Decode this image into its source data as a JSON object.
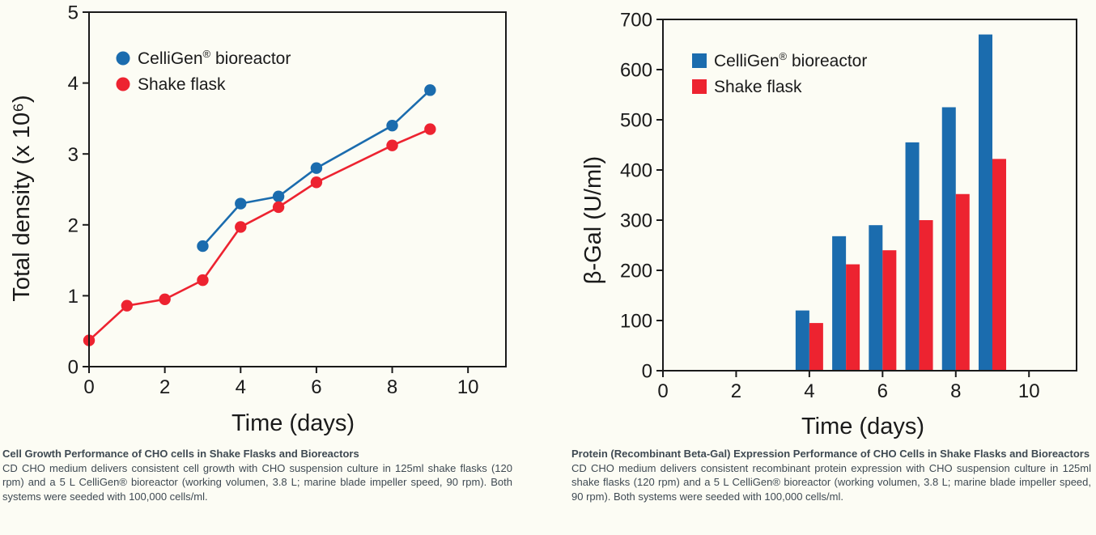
{
  "page": {
    "background": "#fcfcf4"
  },
  "colors": {
    "bioreactor_blue": "#1b6cae",
    "shake_flask_red": "#ed2330",
    "axis_black": "#1a1a1a",
    "caption_text": "#3e4952"
  },
  "chart_data": [
    {
      "id": "cell-growth",
      "type": "line",
      "title": "",
      "xlabel": "Time (days)",
      "ylabel": "Total density (x 10⁶)",
      "xlim": [
        0,
        11
      ],
      "ylim": [
        0,
        5
      ],
      "xticks": [
        0,
        2,
        4,
        6,
        8,
        10
      ],
      "yticks": [
        0,
        1,
        2,
        3,
        4,
        5
      ],
      "grid": false,
      "legend_position": "top-left-inside",
      "legend_marker": "circle",
      "series": [
        {
          "name": "CelliGen® bioreactor",
          "color": "#1b6cae",
          "marker": "circle",
          "points": [
            [
              3,
              1.7
            ],
            [
              4,
              2.3
            ],
            [
              5,
              2.4
            ],
            [
              6,
              2.8
            ],
            [
              8,
              3.4
            ],
            [
              9,
              3.9
            ]
          ]
        },
        {
          "name": "Shake flask",
          "color": "#ed2330",
          "marker": "circle",
          "points": [
            [
              0,
              0.37
            ],
            [
              1,
              0.86
            ],
            [
              2,
              0.95
            ],
            [
              3,
              1.22
            ],
            [
              4,
              1.97
            ],
            [
              5,
              2.25
            ],
            [
              6,
              2.6
            ],
            [
              8,
              3.12
            ],
            [
              9,
              3.35
            ]
          ]
        }
      ]
    },
    {
      "id": "beta-gal",
      "type": "bar",
      "title": "",
      "xlabel": "Time (days)",
      "ylabel": "β-Gal (U/ml)",
      "xlim": [
        0,
        11.3
      ],
      "ylim": [
        0,
        700
      ],
      "xticks": [
        0,
        2,
        4,
        6,
        8,
        10
      ],
      "yticks": [
        0,
        100,
        200,
        300,
        400,
        500,
        600,
        700
      ],
      "grid": false,
      "legend_position": "top-left-inside",
      "legend_marker": "square",
      "categories": [
        4,
        5,
        6,
        7,
        8,
        9
      ],
      "series": [
        {
          "name": "CelliGen® bioreactor",
          "color": "#1b6cae",
          "values": [
            120,
            268,
            290,
            455,
            525,
            670
          ]
        },
        {
          "name": "Shake flask",
          "color": "#ed2330",
          "values": [
            95,
            212,
            240,
            300,
            352,
            422
          ]
        }
      ]
    }
  ],
  "captions": {
    "left": {
      "title": "Cell Growth Performance of CHO cells in Shake Flasks and Bioreactors",
      "body": "CD CHO medium delivers consistent cell growth with CHO suspension culture in 125ml shake flasks (120 rpm) and a 5 L CelliGen® bioreactor (working volumen, 3.8 L; marine blade impeller speed, 90 rpm). Both systems were seeded with 100,000 cells/ml."
    },
    "right": {
      "title": "Protein (Recombinant Beta-Gal) Expression Performance of CHO Cells in Shake Flasks and Bioreactors",
      "body": "CD CHO medium delivers consistent recombinant protein expression with CHO suspension culture in 125ml shake flasks (120 rpm) and a 5 L CelliGen® bioreactor (working volumen, 3.8 L; marine blade impeller speed, 90 rpm). Both systems were seeded with 100,000 cells/ml."
    }
  }
}
